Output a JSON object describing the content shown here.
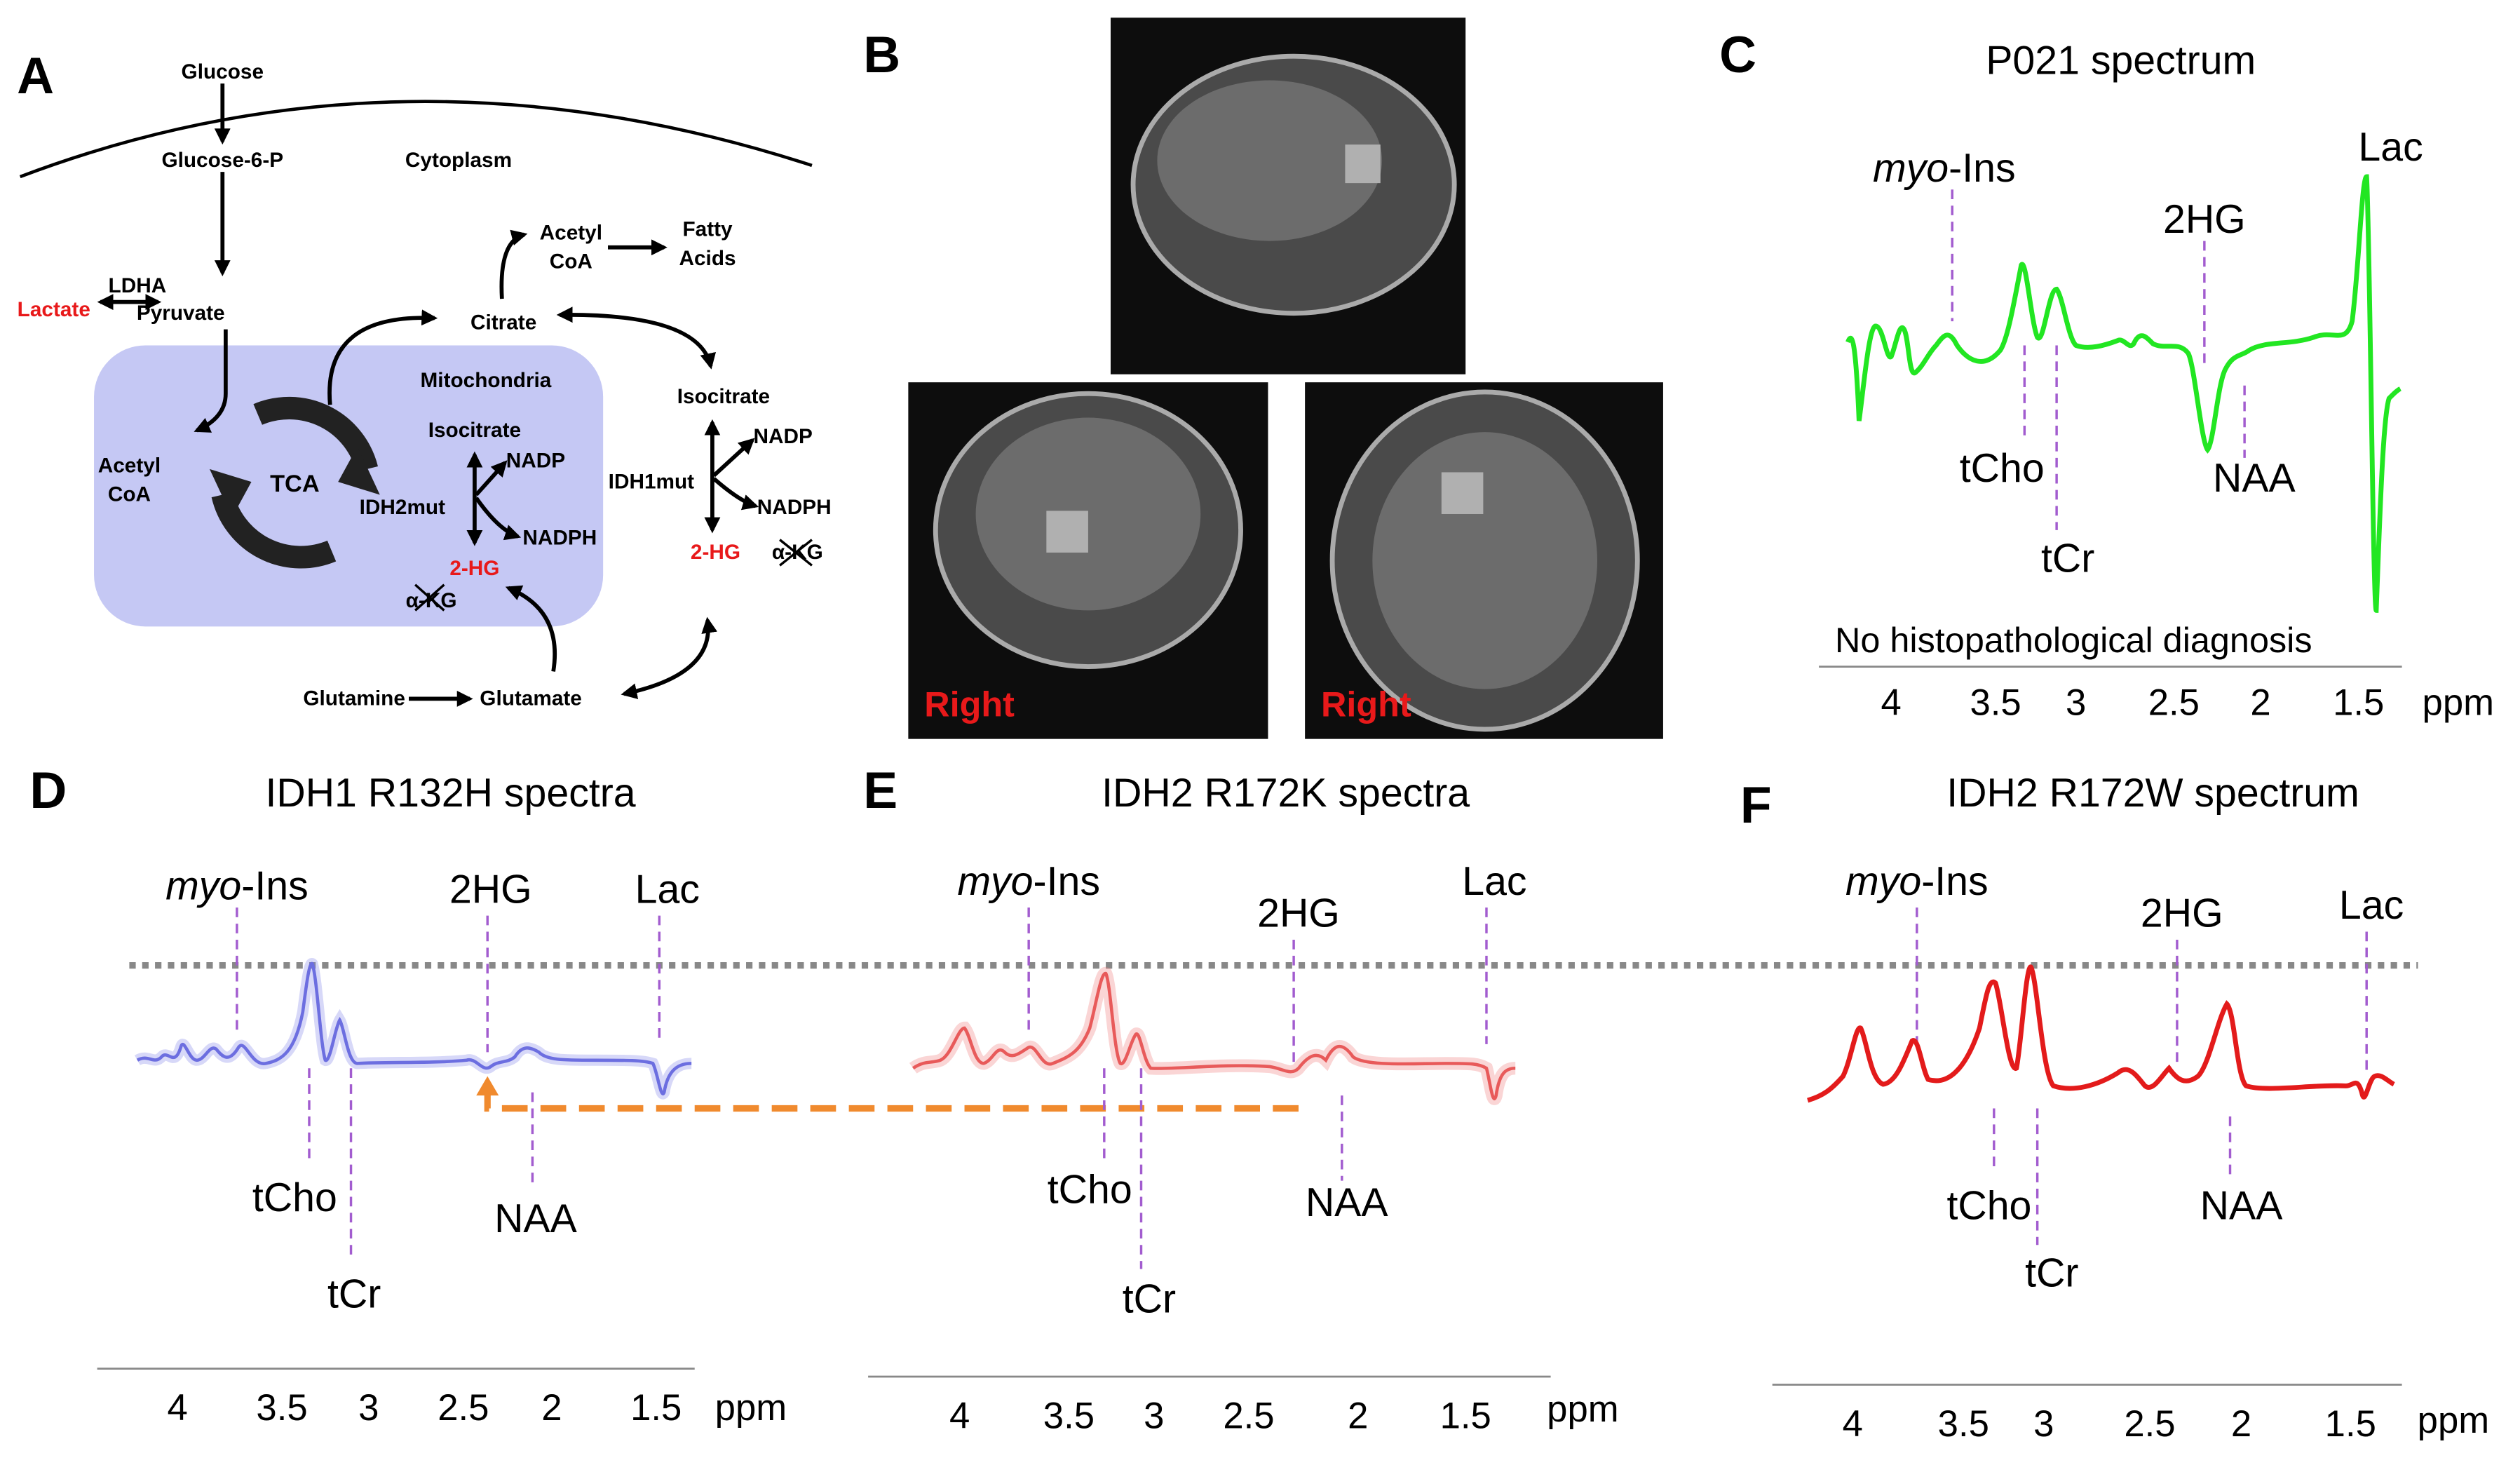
{
  "panel_a": {
    "label": "A",
    "glucose": "Glucose",
    "glucose_6_p": "Glucose-6-P",
    "cytoplasm": "Cytoplasm",
    "lactate": "Lactate",
    "ldha": "LDHA",
    "pyruvate": "Pyruvate",
    "acetyl_coa_cyto": [
      "Acetyl",
      "CoA"
    ],
    "fatty_acids": [
      "Fatty",
      "Acids"
    ],
    "citrate": "Citrate",
    "mitochondria": "Mitochondria",
    "isocitrate_mito": "Isocitrate",
    "nadp_mito": "NADP",
    "idh2mut": "IDH2mut",
    "nadph_mito": "NADPH",
    "two_hg_mito": "2-HG",
    "akg_mito": "α-KG",
    "tca": "TCA",
    "acetyl_coa_mito": [
      "Acetyl",
      "CoA"
    ],
    "isocitrate_cyto": "Isocitrate",
    "nadp_cyto": "NADP",
    "idh1mut": "IDH1mut",
    "nadph_cyto": "NADPH",
    "two_hg_cyto": "2-HG",
    "akg_cyto": "α-KG",
    "glutamine": "Glutamine",
    "glutamate": "Glutamate"
  },
  "panel_b": {
    "label": "B",
    "side_labels": [
      "Right",
      "Right"
    ]
  },
  "panel_c": {
    "label": "C",
    "title": "P021 spectrum",
    "peaks": {
      "myo_ins": {
        "italic": "myo",
        "rest": "-Ins"
      },
      "lac": "Lac",
      "two_hg": "2HG",
      "tcho": "tCho",
      "naa": "NAA",
      "tcr": "tCr"
    },
    "note": "No histopathological diagnosis",
    "ticks": [
      4,
      3.5,
      3,
      2.5,
      2,
      1.5
    ],
    "unit": "ppm"
  },
  "panel_d": {
    "label": "D",
    "title": "IDH1 R132H spectra",
    "peaks": {
      "myo_ins": {
        "italic": "myo",
        "rest": "-Ins"
      },
      "lac": "Lac",
      "two_hg": "2HG",
      "tcho": "tCho",
      "naa": "NAA",
      "tcr": "tCr"
    },
    "ticks": [
      4,
      3.5,
      3,
      2.5,
      2,
      1.5
    ],
    "unit": "ppm"
  },
  "panel_e": {
    "label": "E",
    "title": "IDH2 R172K spectra",
    "peaks": {
      "myo_ins": {
        "italic": "myo",
        "rest": "-Ins"
      },
      "lac": "Lac",
      "two_hg": "2HG",
      "tcho": "tCho",
      "naa": "NAA",
      "tcr": "tCr"
    },
    "ticks": [
      4,
      3.5,
      3,
      2.5,
      2,
      1.5
    ],
    "unit": "ppm"
  },
  "panel_f": {
    "label": "F",
    "title": "IDH2 R172W spectrum",
    "peaks": {
      "myo_ins": {
        "italic": "myo",
        "rest": "-Ins"
      },
      "lac": "Lac",
      "two_hg": "2HG",
      "tcho": "tCho",
      "naa": "NAA",
      "tcr": "tCr"
    },
    "ticks": [
      4,
      3.5,
      3,
      2.5,
      2,
      1.5
    ],
    "unit": "ppm"
  }
}
